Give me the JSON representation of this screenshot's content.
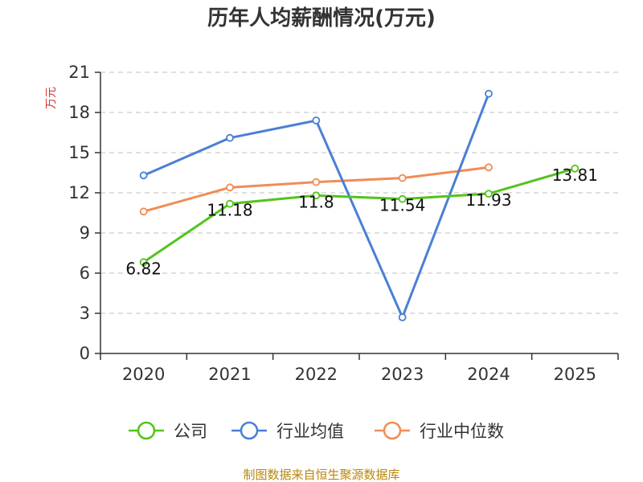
{
  "chart_data": {
    "type": "line",
    "title": "历年人均薪酬情况(万元)",
    "ylabel": "万元",
    "xlabel": "",
    "categories": [
      "2020",
      "2021",
      "2022",
      "2023",
      "2024",
      "2025"
    ],
    "yticks": [
      0,
      3,
      6,
      9,
      12,
      15,
      18,
      21
    ],
    "ylim": [
      0,
      21
    ],
    "grid": true,
    "legend_position": "bottom",
    "series": [
      {
        "name": "公司",
        "color": "#52c41a",
        "values": [
          6.82,
          11.18,
          11.8,
          11.54,
          11.93,
          13.81
        ],
        "labels": [
          "6.82",
          "11.18",
          "11.8",
          "11.54",
          "11.93",
          "13.81"
        ]
      },
      {
        "name": "行业均值",
        "color": "#4a7fd4",
        "values": [
          13.3,
          16.1,
          17.4,
          2.7,
          19.4,
          null
        ],
        "labels": null
      },
      {
        "name": "行业中位数",
        "color": "#f28c55",
        "values": [
          10.6,
          12.4,
          12.8,
          13.1,
          13.9,
          null
        ],
        "labels": null
      }
    ],
    "footer": "制图数据来自恒生聚源数据库",
    "colors": {
      "axis": "#333333",
      "grid": "#cccccc",
      "ylabel": "#e03030",
      "footer": "#b8860b"
    }
  }
}
